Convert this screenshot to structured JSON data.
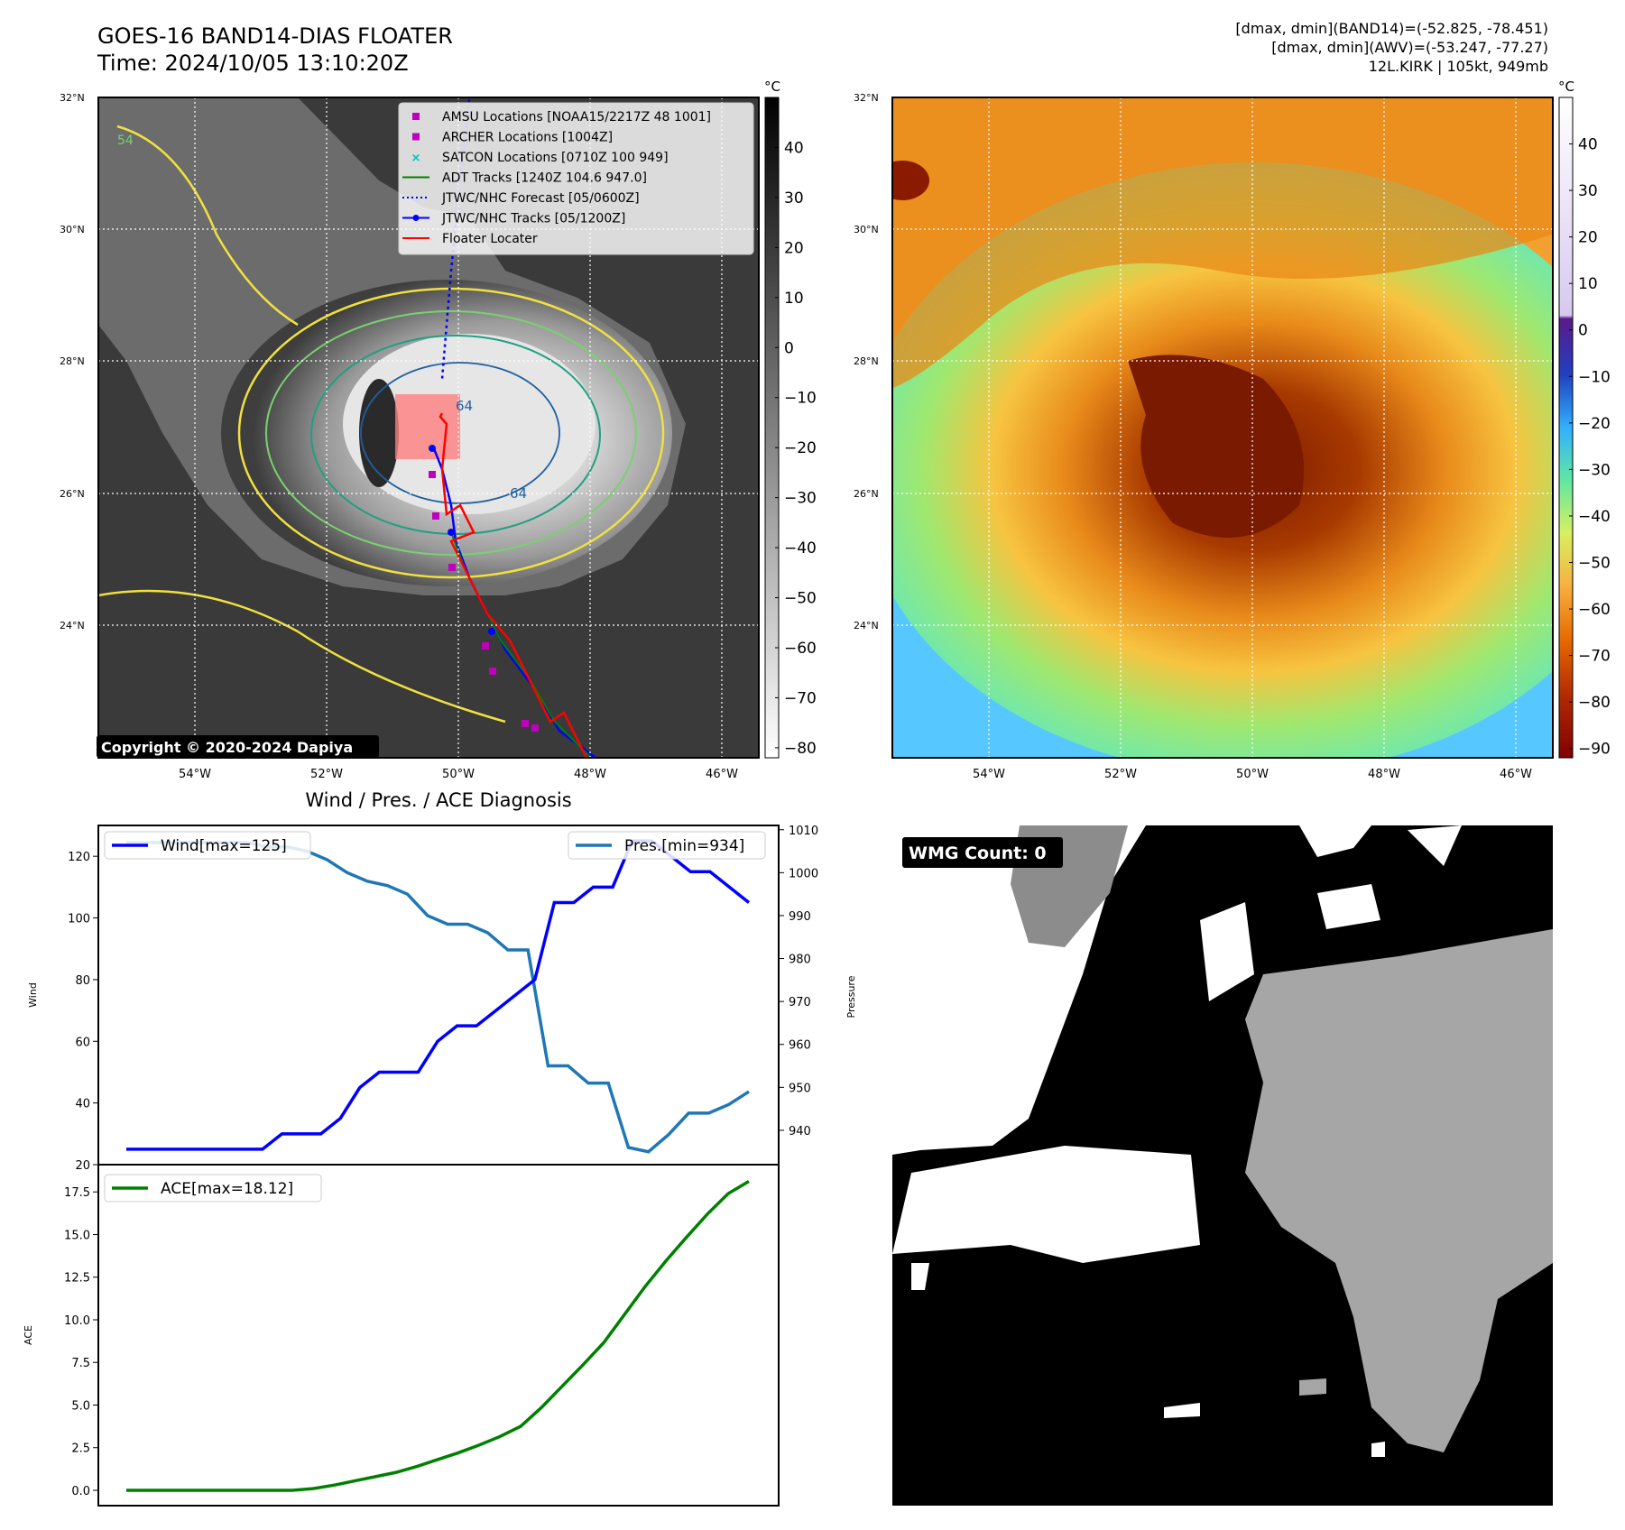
{
  "header": {
    "title_line1": "GOES-16 BAND14-DIAS FLOATER",
    "title_line2": "Time: 2024/10/05 13:10:20Z",
    "info_line1": "[dmax, dmin](BAND14)=(-52.825, -78.451)",
    "info_line2": "[dmax, dmin](AWV)=(-53.247, -77.27)",
    "info_line3": "12L.KIRK | 105kt, 949mb"
  },
  "map": {
    "lat_labels": [
      "32°N",
      "30°N",
      "28°N",
      "26°N",
      "24°N"
    ],
    "lon_labels": [
      "54°W",
      "52°W",
      "50°W",
      "48°W",
      "46°W"
    ],
    "copyright": "Copyright © 2020-2024 Dapiya",
    "contour_labels": [
      "64",
      "64",
      "54"
    ],
    "legend": [
      {
        "label": "AMSU Locations [NOAA15/2217Z 48 1001]",
        "color": "#bf00bf",
        "marker": "square"
      },
      {
        "label": "ARCHER Locations [1004Z]",
        "color": "#bf00bf",
        "marker": "square"
      },
      {
        "label": "SATCON Locations [0710Z 100 949]",
        "color": "#00bfbf",
        "marker": "x"
      },
      {
        "label": "ADT Tracks [1240Z 104.6 947.0]",
        "color": "#008000",
        "marker": "line"
      },
      {
        "label": "JTWC/NHC Forecast [05/0600Z]",
        "color": "#0000ff",
        "marker": "dotted"
      },
      {
        "label": "JTWC/NHC Tracks [05/1200Z]",
        "color": "#0000ff",
        "marker": "line-dot"
      },
      {
        "label": "Floater Locater",
        "color": "#ff0000",
        "marker": "line"
      }
    ]
  },
  "colorbar_gray": {
    "unit": "°C",
    "ticks": [
      "40",
      "30",
      "20",
      "10",
      "0",
      "−10",
      "−20",
      "−30",
      "−40",
      "−50",
      "−60",
      "−70",
      "−80"
    ]
  },
  "colorbar_color": {
    "unit": "°C",
    "ticks": [
      "40",
      "30",
      "20",
      "10",
      "0",
      "−10",
      "−20",
      "−30",
      "−40",
      "−50",
      "−60",
      "−70",
      "−80",
      "−90"
    ]
  },
  "wmg": {
    "label": "WMG Count: 0"
  },
  "chart_data": [
    {
      "type": "line",
      "title": "Wind / Pres. / ACE Diagnosis",
      "xlabel": "",
      "ylabel": "Wind",
      "ylim": [
        20,
        130
      ],
      "y_ticks": [
        "20",
        "40",
        "60",
        "80",
        "100",
        "120"
      ],
      "series": [
        {
          "name": "Wind[max=125]",
          "color": "#0000ff",
          "values": [
            25,
            25,
            25,
            25,
            25,
            25,
            25,
            25,
            30,
            30,
            30,
            35,
            45,
            50,
            50,
            50,
            60,
            65,
            65,
            70,
            75,
            80,
            105,
            105,
            110,
            110,
            125,
            125,
            120,
            115,
            115,
            110,
            105
          ]
        }
      ]
    },
    {
      "type": "line",
      "ylabel": "Pressure",
      "ylim": [
        932,
        1011
      ],
      "y_ticks": [
        "1010",
        "1000",
        "990",
        "980",
        "970",
        "960",
        "950",
        "940"
      ],
      "series": [
        {
          "name": "Pres.[min=934]",
          "color": "#1f77b4",
          "values": [
            1007,
            1007,
            1007,
            1007,
            1007,
            1007,
            1007,
            1006,
            1006,
            1005,
            1003,
            1000,
            998,
            997,
            995,
            990,
            988,
            988,
            986,
            982,
            982,
            955,
            955,
            951,
            951,
            936,
            935,
            939,
            944,
            944,
            946,
            949
          ]
        }
      ]
    },
    {
      "type": "line",
      "ylabel": "ACE",
      "ylim": [
        -0.9,
        19.1
      ],
      "y_ticks": [
        "0.0",
        "2.5",
        "5.0",
        "7.5",
        "10.0",
        "12.5",
        "15.0",
        "17.5"
      ],
      "series": [
        {
          "name": "ACE[max=18.12]",
          "color": "#008000",
          "values": [
            0,
            0,
            0,
            0,
            0,
            0,
            0,
            0,
            0,
            0.1,
            0.3,
            0.55,
            0.8,
            1.05,
            1.4,
            1.8,
            2.2,
            2.65,
            3.15,
            3.75,
            4.85,
            6.1,
            7.35,
            8.65,
            10.3,
            11.95,
            13.45,
            14.85,
            16.2,
            17.4,
            18.12
          ]
        }
      ]
    }
  ]
}
